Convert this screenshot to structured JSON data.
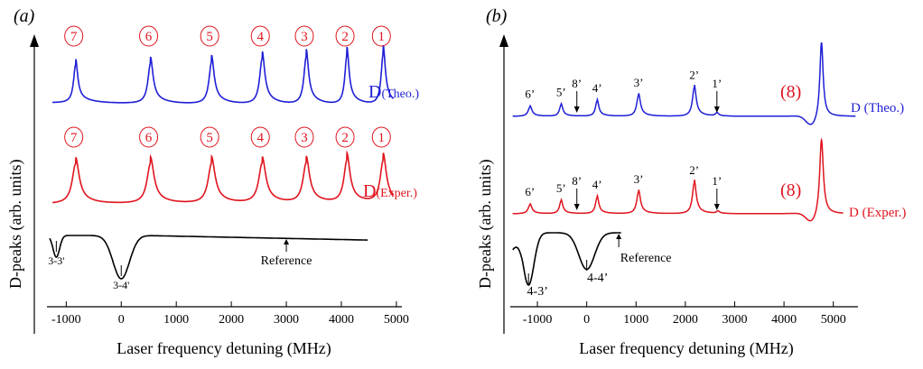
{
  "chart_data": [
    {
      "type": "line",
      "panel_label": "(a)",
      "xlabel": "Laser frequency detuning (MHz)",
      "ylabel": "D-peaks (arb. units)",
      "xlim": [
        -1350,
        5100
      ],
      "xticks": [
        -1000,
        0,
        1000,
        2000,
        3000,
        4000,
        5000
      ],
      "xtick_labels": [
        "-1000",
        "0",
        "1000",
        "2000",
        "3000",
        "4000",
        "5000"
      ],
      "baseline_text_start": -1300,
      "baseline_text_end": 4950,
      "series": [
        {
          "label_main": "D",
          "label_sub": "(Theo.)",
          "color": "#1f1fd6",
          "peaks": [
            {
              "x": -830,
              "h": 1.0,
              "w": 45,
              "marker": "7"
            },
            {
              "x": 530,
              "h": 1.05,
              "w": 55,
              "marker": "6"
            },
            {
              "x": 1640,
              "h": 1.1,
              "w": 55,
              "marker": "5"
            },
            {
              "x": 2560,
              "h": 1.2,
              "w": 55,
              "marker": "4"
            },
            {
              "x": 3360,
              "h": 1.25,
              "w": 50,
              "marker": "3"
            },
            {
              "x": 4100,
              "h": 1.3,
              "w": 45,
              "marker": "2"
            },
            {
              "x": 4760,
              "h": 1.35,
              "w": 45,
              "marker": "1"
            }
          ]
        },
        {
          "label_main": "D",
          "label_sub": "(Exper.)",
          "color": "#e0141e",
          "peaks": [
            {
              "x": -830,
              "h": 0.8,
              "w": 75,
              "marker": "7"
            },
            {
              "x": 530,
              "h": 0.8,
              "w": 75,
              "marker": "6"
            },
            {
              "x": 1640,
              "h": 0.8,
              "w": 75,
              "marker": "5"
            },
            {
              "x": 2560,
              "h": 0.8,
              "w": 75,
              "marker": "4"
            },
            {
              "x": 3360,
              "h": 0.8,
              "w": 70,
              "marker": "3"
            },
            {
              "x": 4100,
              "h": 0.85,
              "w": 65,
              "marker": "2"
            },
            {
              "x": 4760,
              "h": 0.85,
              "w": 65,
              "marker": "1"
            }
          ]
        },
        {
          "label_main": "",
          "label_sub": "",
          "color": "#000000",
          "dips": [
            {
              "x": -1180,
              "depth": 0.5,
              "w": 60,
              "label": "3-3'"
            },
            {
              "x": 0,
              "depth": 1.0,
              "w": 150,
              "label": "3-4'"
            }
          ],
          "reference_text": "Reference",
          "reference_x": 3000
        }
      ]
    },
    {
      "type": "line",
      "panel_label": "(b)",
      "xlabel": "Laser frequency detuning (MHz)",
      "ylabel": "D-peaks (arb. units)",
      "xlim": [
        -1550,
        5500
      ],
      "xticks": [
        -1000,
        0,
        1000,
        2000,
        3000,
        4000,
        5000
      ],
      "xtick_labels": [
        "-1000",
        "0",
        "1000",
        "2000",
        "3000",
        "4000",
        "5000"
      ],
      "series": [
        {
          "label": "D (Theo.)",
          "color": "#1f1fd6",
          "peaks": [
            {
              "x": -1150,
              "h": 0.25,
              "w": 45,
              "label": "6’"
            },
            {
              "x": -520,
              "h": 0.3,
              "w": 40,
              "label": "5’"
            },
            {
              "x": 210,
              "h": 0.4,
              "w": 40,
              "label": "4’"
            },
            {
              "x": 1050,
              "h": 0.55,
              "w": 45,
              "label": "3’"
            },
            {
              "x": 2180,
              "h": 0.75,
              "w": 45,
              "label": "2’"
            },
            {
              "x": 2640,
              "h": 0.08,
              "w": 40,
              "label": "1’"
            },
            {
              "x": 4760,
              "h": 2.0,
              "w": 40,
              "label": ""
            }
          ],
          "arrow_labels": [
            {
              "x": -200,
              "label": "8’"
            },
            {
              "x": 2640,
              "label": "1’"
            }
          ],
          "marker_text": "(8)"
        },
        {
          "label": "D (Exper.)",
          "color": "#e0141e",
          "peaks": [
            {
              "x": -1150,
              "h": 0.25,
              "w": 45,
              "label": "6’"
            },
            {
              "x": -520,
              "h": 0.35,
              "w": 40,
              "label": "5’"
            },
            {
              "x": 210,
              "h": 0.45,
              "w": 40,
              "label": "4’"
            },
            {
              "x": 1050,
              "h": 0.6,
              "w": 45,
              "label": "3’"
            },
            {
              "x": 2180,
              "h": 0.85,
              "w": 45,
              "label": "2’"
            },
            {
              "x": 2660,
              "h": 0.06,
              "w": 40,
              "label": "1’"
            },
            {
              "x": 4760,
              "h": 2.1,
              "w": 45,
              "label": ""
            }
          ],
          "arrow_labels": [
            {
              "x": -200,
              "label": "8’"
            },
            {
              "x": 2640,
              "label": "1’"
            }
          ],
          "marker_text": "(8)"
        },
        {
          "label": "",
          "color": "#000000",
          "dips": [
            {
              "x": -1180,
              "depth": 1.0,
              "w": 110,
              "label": "4-3’"
            },
            {
              "x": 0,
              "depth": 0.7,
              "w": 160,
              "label": "4-4’"
            }
          ],
          "reference_text": "Reference",
          "reference_x": 650
        }
      ]
    }
  ]
}
